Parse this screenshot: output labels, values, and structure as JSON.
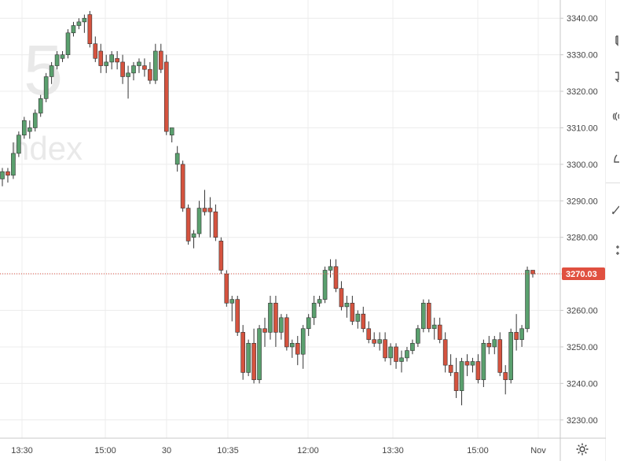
{
  "watermark": {
    "symbol_digit": "5",
    "name_fragment": "ndex"
  },
  "last_price": "3270.03",
  "colors": {
    "up": "#5aa06e",
    "down": "#d5533f",
    "grid": "#ececec",
    "last": "#e05040",
    "outline": "#333333"
  },
  "toolbar": {
    "settings_icon": "gear-icon"
  },
  "chart_data": {
    "type": "candlestick",
    "ylim": [
      3225,
      3345
    ],
    "yticks": [
      "3230.00",
      "3240.00",
      "3250.00",
      "3260.00",
      "3270.00",
      "3280.00",
      "3290.00",
      "3300.00",
      "3310.00",
      "3320.00",
      "3330.00",
      "3340.00"
    ],
    "xticks": [
      "13:30",
      "15:00",
      "30",
      "10:35",
      "12:00",
      "13:30",
      "15:00",
      "Nov"
    ],
    "last_value": 3270.03,
    "candles": [
      [
        3296,
        3299,
        3294,
        3298
      ],
      [
        3298,
        3299,
        3295,
        3297
      ],
      [
        3297,
        3306,
        3296,
        3303
      ],
      [
        3303,
        3309,
        3302,
        3308
      ],
      [
        3308,
        3313,
        3307,
        3312
      ],
      [
        3309,
        3312,
        3307,
        3310
      ],
      [
        3310,
        3315,
        3309,
        3314
      ],
      [
        3314,
        3319,
        3313,
        3318
      ],
      [
        3318,
        3325,
        3317,
        3324
      ],
      [
        3324,
        3328,
        3322,
        3327
      ],
      [
        3327,
        3331,
        3326,
        3330
      ],
      [
        3329,
        3331,
        3328,
        3330
      ],
      [
        3330,
        3337,
        3329,
        3336
      ],
      [
        3336,
        3339,
        3335,
        3338
      ],
      [
        3338,
        3340,
        3337,
        3339
      ],
      [
        3339,
        3341,
        3336,
        3340
      ],
      [
        3341,
        3342,
        3332,
        3333
      ],
      [
        3333,
        3335,
        3328,
        3329
      ],
      [
        3331,
        3333,
        3325,
        3327
      ],
      [
        3327,
        3330,
        3325,
        3328
      ],
      [
        3328,
        3331,
        3326,
        3330
      ],
      [
        3329,
        3331,
        3326,
        3328
      ],
      [
        3328,
        3330,
        3322,
        3324
      ],
      [
        3324,
        3327,
        3318,
        3325
      ],
      [
        3325,
        3328,
        3323,
        3327
      ],
      [
        3327,
        3329,
        3325,
        3328
      ],
      [
        3327,
        3329,
        3324,
        3326
      ],
      [
        3326,
        3328,
        3322,
        3323
      ],
      [
        3323,
        3333,
        3322,
        3331
      ],
      [
        3331,
        3333,
        3325,
        3326
      ],
      [
        3328,
        3330,
        3308,
        3309
      ],
      [
        3308,
        3310,
        3306,
        3310
      ],
      [
        3300,
        3305,
        3298,
        3303
      ],
      [
        3300,
        3301,
        3287,
        3288
      ],
      [
        3288,
        3289,
        3278,
        3279
      ],
      [
        3280,
        3282,
        3277,
        3281
      ],
      [
        3281,
        3290,
        3280,
        3288
      ],
      [
        3288,
        3293,
        3286,
        3287
      ],
      [
        3288,
        3291,
        3280,
        3287
      ],
      [
        3287,
        3289,
        3279,
        3280
      ],
      [
        3279,
        3280,
        3270,
        3271
      ],
      [
        3270,
        3271,
        3261,
        3262
      ],
      [
        3262,
        3264,
        3257,
        3263
      ],
      [
        3263,
        3264,
        3253,
        3254
      ],
      [
        3254,
        3256,
        3241,
        3243
      ],
      [
        3243,
        3252,
        3242,
        3251
      ],
      [
        3251,
        3255,
        3240,
        3241
      ],
      [
        3241,
        3256,
        3240,
        3255
      ],
      [
        3255,
        3258,
        3250,
        3254
      ],
      [
        3254,
        3264,
        3252,
        3262
      ],
      [
        3262,
        3264,
        3250,
        3254
      ],
      [
        3254,
        3259,
        3252,
        3258
      ],
      [
        3258,
        3259,
        3249,
        3250
      ],
      [
        3250,
        3252,
        3247,
        3251
      ],
      [
        3251,
        3253,
        3245,
        3248
      ],
      [
        3248,
        3256,
        3244,
        3255
      ],
      [
        3255,
        3259,
        3253,
        3258
      ],
      [
        3258,
        3264,
        3256,
        3262
      ],
      [
        3262,
        3264,
        3261,
        3263
      ],
      [
        3263,
        3272,
        3262,
        3271
      ],
      [
        3271,
        3274,
        3269,
        3272
      ],
      [
        3272,
        3274,
        3265,
        3266
      ],
      [
        3266,
        3268,
        3260,
        3261
      ],
      [
        3261,
        3264,
        3258,
        3262
      ],
      [
        3262,
        3264,
        3256,
        3257
      ],
      [
        3257,
        3260,
        3255,
        3259
      ],
      [
        3259,
        3261,
        3254,
        3255
      ],
      [
        3255,
        3257,
        3251,
        3252
      ],
      [
        3252,
        3254,
        3250,
        3251
      ],
      [
        3251,
        3254,
        3249,
        3252
      ],
      [
        3252,
        3254,
        3246,
        3247
      ],
      [
        3247,
        3251,
        3245,
        3250
      ],
      [
        3250,
        3251,
        3244,
        3246
      ],
      [
        3246,
        3249,
        3243,
        3247
      ],
      [
        3247,
        3250,
        3246,
        3249
      ],
      [
        3249,
        3252,
        3248,
        3251
      ],
      [
        3251,
        3256,
        3250,
        3255
      ],
      [
        3255,
        3263,
        3254,
        3262
      ],
      [
        3262,
        3263,
        3254,
        3255
      ],
      [
        3255,
        3258,
        3252,
        3256
      ],
      [
        3256,
        3258,
        3251,
        3252
      ],
      [
        3252,
        3254,
        3243,
        3245
      ],
      [
        3245,
        3248,
        3242,
        3243
      ],
      [
        3243,
        3247,
        3236,
        3238
      ],
      [
        3238,
        3247,
        3234,
        3246
      ],
      [
        3246,
        3248,
        3242,
        3245
      ],
      [
        3245,
        3247,
        3243,
        3246
      ],
      [
        3246,
        3248,
        3240,
        3241
      ],
      [
        3241,
        3252,
        3239,
        3251
      ],
      [
        3251,
        3253,
        3248,
        3250
      ],
      [
        3250,
        3253,
        3248,
        3252
      ],
      [
        3252,
        3254,
        3242,
        3243
      ],
      [
        3243,
        3245,
        3237,
        3241
      ],
      [
        3241,
        3255,
        3240,
        3254
      ],
      [
        3254,
        3259,
        3249,
        3252
      ],
      [
        3252,
        3256,
        3250,
        3255
      ],
      [
        3255,
        3272,
        3254,
        3271
      ],
      [
        3271,
        3271,
        3269,
        3270
      ]
    ]
  }
}
